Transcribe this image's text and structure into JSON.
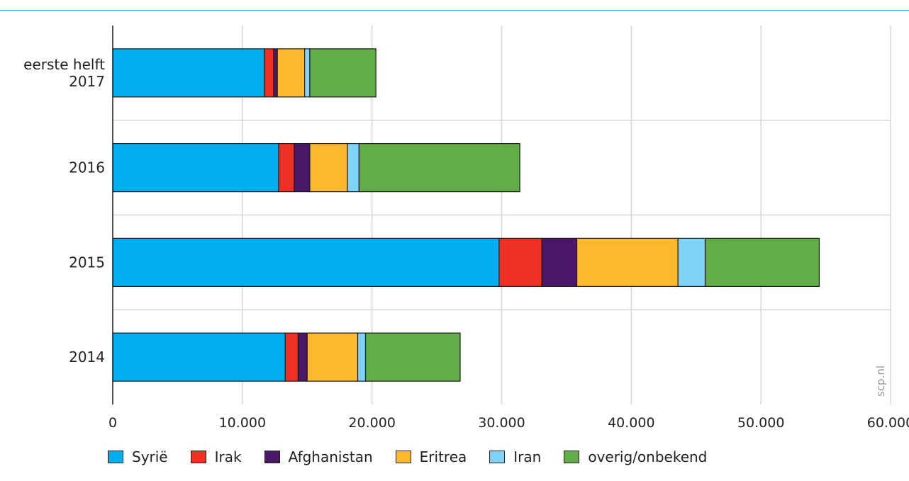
{
  "chart_data": {
    "type": "bar",
    "orientation": "horizontal",
    "stacked": true,
    "categories": [
      "eerste helft 2017",
      "2016",
      "2015",
      "2014"
    ],
    "series": [
      {
        "name": "Syrië",
        "color": "#00adee",
        "values": [
          11700,
          12800,
          29800,
          13300
        ]
      },
      {
        "name": "Irak",
        "color": "#ee3124",
        "values": [
          700,
          1200,
          3300,
          1000
        ]
      },
      {
        "name": "Afghanistan",
        "color": "#4b1869",
        "values": [
          300,
          1200,
          2700,
          700
        ]
      },
      {
        "name": "Eritrea",
        "color": "#fdb92e",
        "values": [
          2100,
          2900,
          7800,
          3900
        ]
      },
      {
        "name": "Iran",
        "color": "#7fd3f7",
        "values": [
          400,
          900,
          2100,
          600
        ]
      },
      {
        "name": "overig/onbekend",
        "color": "#62ad47",
        "values": [
          5100,
          12400,
          8800,
          7300
        ]
      }
    ],
    "xlim": [
      0,
      60000
    ],
    "xticks": [
      "0",
      "10.000",
      "20.000",
      "30.000",
      "40.000",
      "50.000",
      "60.000"
    ],
    "grid": true,
    "legend_position": "bottom",
    "watermark": "scp.nl"
  }
}
